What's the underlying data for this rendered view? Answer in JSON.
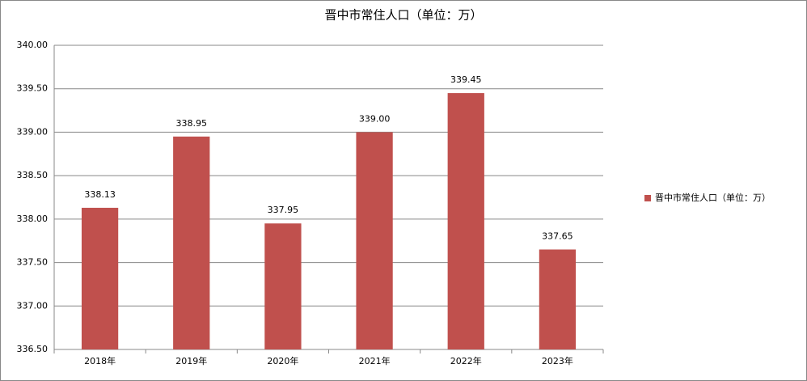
{
  "chart_data": {
    "type": "bar",
    "title": "晋中市常住人口（单位：万）",
    "categories": [
      "2018年",
      "2019年",
      "2020年",
      "2021年",
      "2022年",
      "2023年"
    ],
    "series": [
      {
        "name": "晋中市常住人口（单位：万）",
        "color": "#c0504d",
        "values": [
          338.13,
          338.95,
          337.95,
          339.0,
          339.45,
          337.65
        ],
        "value_labels": [
          "338.13",
          "338.95",
          "337.95",
          "339.00",
          "339.45",
          "337.65"
        ]
      }
    ],
    "ylim": [
      336.5,
      340
    ],
    "yticks": [
      {
        "value": 336.5,
        "label": "336.50"
      },
      {
        "value": 337,
        "label": "337.00"
      },
      {
        "value": 337.5,
        "label": "337.50"
      },
      {
        "value": 338,
        "label": "338.00"
      },
      {
        "value": 338.5,
        "label": "338.50"
      },
      {
        "value": 339,
        "label": "339.00"
      },
      {
        "value": 339.5,
        "label": "339.50"
      },
      {
        "value": 340,
        "label": "340.00"
      }
    ],
    "grid": true,
    "legend": "right"
  }
}
